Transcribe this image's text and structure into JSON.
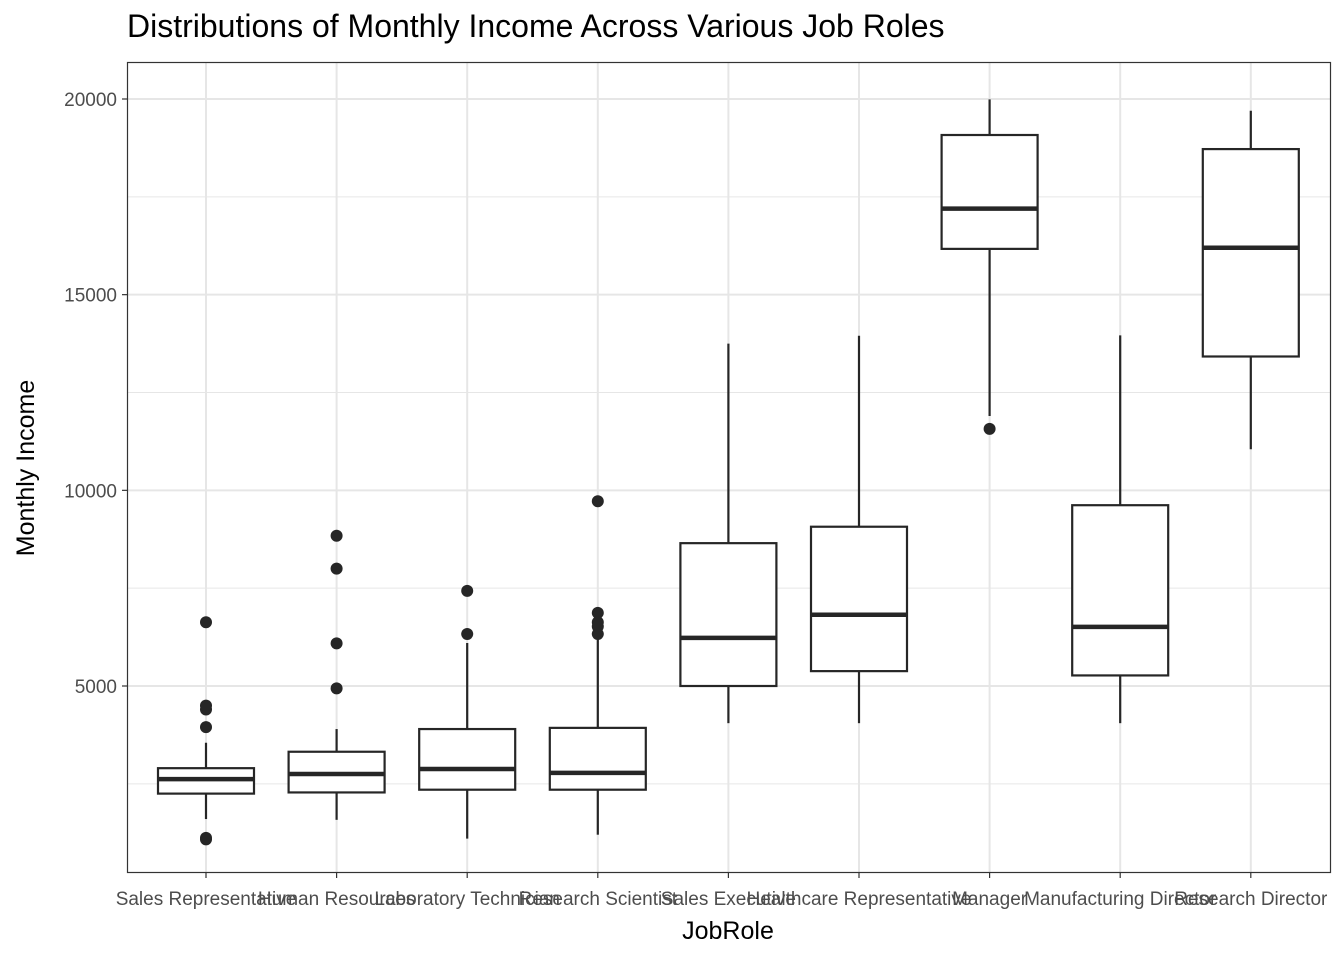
{
  "chart_data": {
    "type": "box",
    "title": "Distributions of Monthly Income Across Various Job Roles",
    "xlabel": "JobRole",
    "ylabel": "Monthly Income",
    "ylim": [
      0,
      21000
    ],
    "yticks": [
      5000,
      10000,
      15000,
      20000
    ],
    "grid": true,
    "theme": "bw",
    "box_color": "#262626",
    "grid_color": "#e6e6e6",
    "categories": [
      "Sales Representative",
      "Human Resources",
      "Laboratory Technician",
      "Research Scientist",
      "Sales Executive",
      "Healthcare Representative",
      "Manager",
      "Manufacturing Director",
      "Research Director"
    ],
    "boxes": [
      {
        "category": "Sales Representative",
        "whisker_low": 1600,
        "q1": 2250,
        "median": 2620,
        "q3": 2900,
        "whisker_high": 3550,
        "outliers": [
          1080,
          1120,
          3950,
          4400,
          4500,
          6630
        ]
      },
      {
        "category": "Human Resources",
        "whisker_low": 1580,
        "q1": 2280,
        "median": 2750,
        "q3": 3320,
        "whisker_high": 3900,
        "outliers": [
          4940,
          6090,
          8000,
          8840
        ]
      },
      {
        "category": "Laboratory Technician",
        "whisker_low": 1100,
        "q1": 2350,
        "median": 2880,
        "q3": 3900,
        "whisker_high": 6100,
        "outliers": [
          6330,
          7430
        ]
      },
      {
        "category": "Research Scientist",
        "whisker_low": 1200,
        "q1": 2350,
        "median": 2780,
        "q3": 3930,
        "whisker_high": 6300,
        "outliers": [
          6330,
          6520,
          6630,
          6870,
          9720
        ]
      },
      {
        "category": "Sales Executive",
        "whisker_low": 4050,
        "q1": 5000,
        "median": 6230,
        "q3": 8650,
        "whisker_high": 13750,
        "outliers": []
      },
      {
        "category": "Healthcare Representative",
        "whisker_low": 4050,
        "q1": 5380,
        "median": 6820,
        "q3": 9070,
        "whisker_high": 13950,
        "outliers": []
      },
      {
        "category": "Manager",
        "whisker_low": 11900,
        "q1": 16170,
        "median": 17200,
        "q3": 19080,
        "whisker_high": 19990,
        "outliers": [
          11570
        ]
      },
      {
        "category": "Manufacturing Director",
        "whisker_low": 4050,
        "q1": 5270,
        "median": 6510,
        "q3": 9620,
        "whisker_high": 13960,
        "outliers": []
      },
      {
        "category": "Research Director",
        "whisker_low": 11050,
        "q1": 13420,
        "median": 16200,
        "q3": 18720,
        "whisker_high": 19700,
        "outliers": []
      }
    ]
  }
}
